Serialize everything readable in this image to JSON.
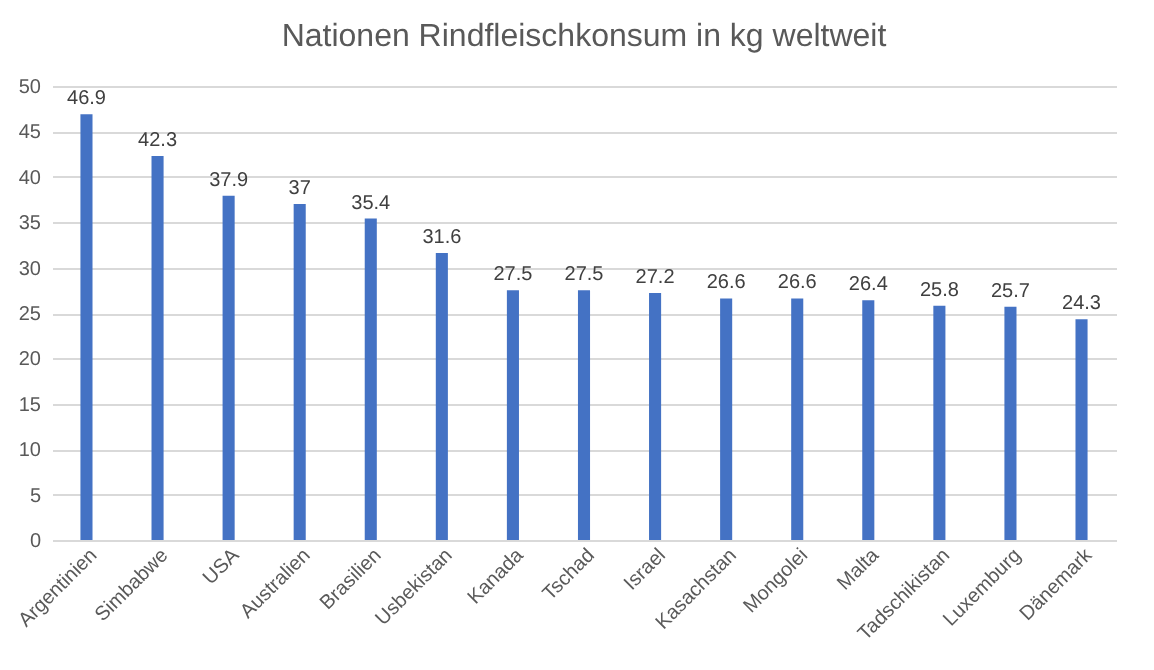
{
  "chart_data": {
    "type": "bar",
    "title": "Nationen Rindfleischkonsum in kg weltweit",
    "categories": [
      "Argentinien",
      "Simbabwe",
      "USA",
      "Australien",
      "Brasilien",
      "Usbekistan",
      "Kanada",
      "Tschad",
      "Israel",
      "Kasachstan",
      "Mongolei",
      "Malta",
      "Tadschikistan",
      "Luxemburg",
      "Dänemark"
    ],
    "values": [
      46.9,
      42.3,
      37.9,
      37,
      35.4,
      31.6,
      27.5,
      27.5,
      27.2,
      26.6,
      26.6,
      26.4,
      25.8,
      25.7,
      24.3
    ],
    "color": "#4472c4",
    "ylim": [
      0,
      50
    ],
    "yticks": [
      0,
      5,
      10,
      15,
      20,
      25,
      30,
      35,
      40,
      45,
      50
    ],
    "grid": "y",
    "data_labels": true
  }
}
